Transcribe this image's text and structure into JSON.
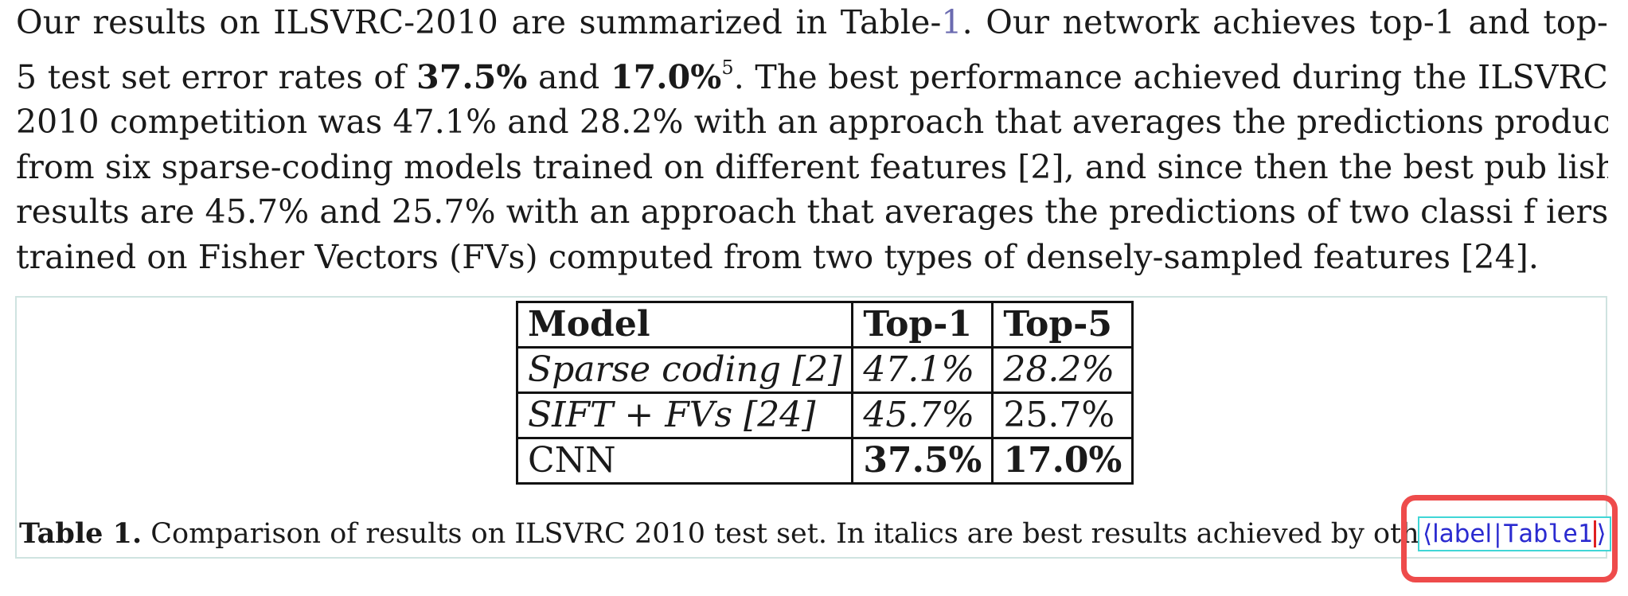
{
  "paragraph": {
    "lines": [
      [
        "Our results on ILSVRC-2010 are summarized in Table-",
        "1",
        ". Our network achieves top-1 and top-"
      ],
      [
        "5 test set error rates of ",
        "37.5%",
        " and ",
        "17.0%",
        "5",
        ". The best performance achieved during the ILSVRC"
      ],
      [
        "2010 competition was 47.1% and 28.2% with an approach that averages the predictions produced"
      ],
      [
        "from six sparse-coding models trained on different features [2], and since then the best pub lished"
      ],
      [
        "results are 45.7% and 25.7% with an approach that averages the predictions of two classi f iers"
      ],
      [
        "trained on Fisher Vectors (FVs) computed from two types of densely-sampled features [24]."
      ]
    ]
  },
  "table": {
    "headers": [
      "Model",
      "Top-1",
      "Top-5"
    ],
    "rows": [
      [
        "Sparse coding [2]",
        "47.1%",
        "28.2%"
      ],
      [
        "SIFT + FVs [24]",
        "45.7%",
        "25.7%"
      ],
      [
        "CNN",
        "37.5%",
        "17.0%"
      ]
    ]
  },
  "caption": {
    "label": "Table 1.",
    "text": " Comparison of results on ILSVRC 2010 test set. In italics are best results achieved by others."
  },
  "label_tag": {
    "open": "⟨",
    "keyword": "label",
    "separator": "|",
    "value": "Table1",
    "close": "⟩"
  },
  "colors": {
    "link": "#6b6bb0",
    "label_tag_text": "#2a2ad0",
    "label_tag_border": "#3fd6d6",
    "highlight_ring": "#ee4b4b",
    "figure_border": "#cfe3e0"
  }
}
